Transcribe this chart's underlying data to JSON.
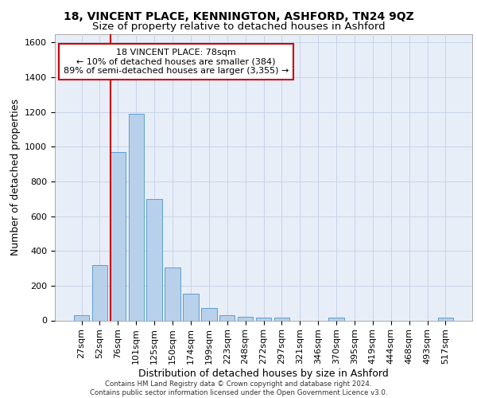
{
  "title1": "18, VINCENT PLACE, KENNINGTON, ASHFORD, TN24 9QZ",
  "title2": "Size of property relative to detached houses in Ashford",
  "xlabel": "Distribution of detached houses by size in Ashford",
  "ylabel": "Number of detached properties",
  "footer1": "Contains HM Land Registry data © Crown copyright and database right 2024.",
  "footer2": "Contains public sector information licensed under the Open Government Licence v3.0.",
  "annotation_line1": "18 VINCENT PLACE: 78sqm",
  "annotation_line2": "← 10% of detached houses are smaller (384)",
  "annotation_line3": "89% of semi-detached houses are larger (3,355) →",
  "bar_categories": [
    "27sqm",
    "52sqm",
    "76sqm",
    "101sqm",
    "125sqm",
    "150sqm",
    "174sqm",
    "199sqm",
    "223sqm",
    "248sqm",
    "272sqm",
    "297sqm",
    "321sqm",
    "346sqm",
    "370sqm",
    "395sqm",
    "419sqm",
    "444sqm",
    "468sqm",
    "493sqm",
    "517sqm"
  ],
  "bar_values": [
    30,
    320,
    970,
    1190,
    700,
    305,
    155,
    70,
    30,
    20,
    15,
    15,
    0,
    0,
    15,
    0,
    0,
    0,
    0,
    0,
    15
  ],
  "bar_color": "#b8d0ea",
  "bar_edge_color": "#5a9fd4",
  "vline_color": "#cc0000",
  "vline_bar_index": 2,
  "ylim": [
    0,
    1650
  ],
  "yticks": [
    0,
    200,
    400,
    600,
    800,
    1000,
    1200,
    1400,
    1600
  ],
  "grid_color": "#c8d4e8",
  "axis_bg_color": "#e8eef8",
  "annotation_box_color": "#cc0000",
  "title1_fontsize": 10,
  "title2_fontsize": 9.5,
  "xlabel_fontsize": 9,
  "ylabel_fontsize": 9,
  "tick_fontsize": 8,
  "annotation_fontsize": 8
}
